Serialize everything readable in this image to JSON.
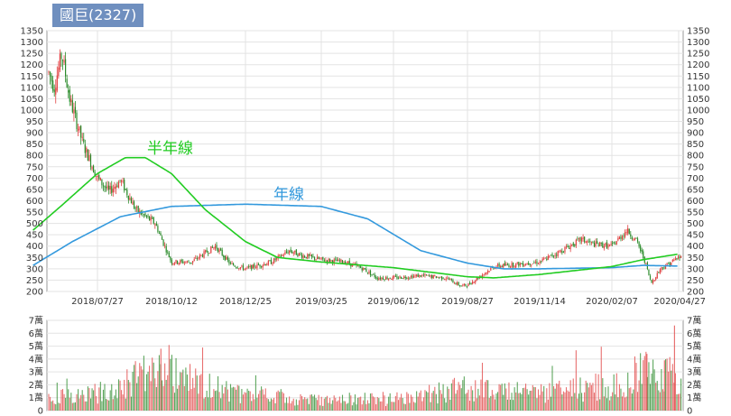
{
  "chart_data": {
    "title": "國巨(2327)",
    "type": "candlestick",
    "price_panel": {
      "y_ticks": [
        200,
        250,
        300,
        350,
        400,
        450,
        500,
        550,
        600,
        650,
        700,
        750,
        800,
        850,
        900,
        950,
        1000,
        1050,
        1100,
        1150,
        1200,
        1250,
        1300,
        1350
      ],
      "ylim": [
        200,
        1350
      ],
      "x_ticks": [
        "2018/07/27",
        "2018/10/12",
        "2018/12/25",
        "2019/03/25",
        "2019/06/12",
        "2019/08/27",
        "2019/11/14",
        "2020/02/07",
        "2020/04/27"
      ],
      "grid": true,
      "annotations": [
        {
          "text": "半年線",
          "color": "#22cc22"
        },
        {
          "text": "年線",
          "color": "#3399dd"
        }
      ],
      "price_keypoints": [
        [
          "2018/05/21",
          1000
        ],
        [
          "2018/06/05",
          1180
        ],
        [
          "2018/06/12",
          1100
        ],
        [
          "2018/06/20",
          1250
        ],
        [
          "2018/06/28",
          1050
        ],
        [
          "2018/07/12",
          850
        ],
        [
          "2018/07/27",
          700
        ],
        [
          "2018/08/08",
          640
        ],
        [
          "2018/08/20",
          690
        ],
        [
          "2018/09/05",
          560
        ],
        [
          "2018/09/25",
          500
        ],
        [
          "2018/10/12",
          330
        ],
        [
          "2018/11/01",
          330
        ],
        [
          "2018/11/25",
          400
        ],
        [
          "2018/12/10",
          320
        ],
        [
          "2018/12/25",
          300
        ],
        [
          "2019/01/25",
          330
        ],
        [
          "2019/02/15",
          380
        ],
        [
          "2019/03/01",
          360
        ],
        [
          "2019/03/25",
          340
        ],
        [
          "2019/04/20",
          330
        ],
        [
          "2019/05/10",
          300
        ],
        [
          "2019/05/25",
          260
        ],
        [
          "2019/06/12",
          260
        ],
        [
          "2019/07/10",
          270
        ],
        [
          "2019/08/05",
          260
        ],
        [
          "2019/08/20",
          225
        ],
        [
          "2019/08/27",
          228
        ],
        [
          "2019/09/25",
          310
        ],
        [
          "2019/10/20",
          320
        ],
        [
          "2019/11/14",
          330
        ],
        [
          "2019/12/10",
          380
        ],
        [
          "2020/01/02",
          430
        ],
        [
          "2020/01/15",
          410
        ],
        [
          "2020/02/07",
          400
        ],
        [
          "2020/02/25",
          470
        ],
        [
          "2020/03/08",
          420
        ],
        [
          "2020/03/18",
          330
        ],
        [
          "2020/03/25",
          235
        ],
        [
          "2020/04/05",
          300
        ],
        [
          "2020/04/27",
          350
        ]
      ],
      "ma_half_year": [
        [
          "2018/05/21",
          470
        ],
        [
          "2018/06/20",
          580
        ],
        [
          "2018/07/27",
          720
        ],
        [
          "2018/08/25",
          790
        ],
        [
          "2018/09/15",
          790
        ],
        [
          "2018/10/12",
          720
        ],
        [
          "2018/11/15",
          560
        ],
        [
          "2018/12/25",
          420
        ],
        [
          "2019/02/01",
          350
        ],
        [
          "2019/03/25",
          330
        ],
        [
          "2019/06/12",
          305
        ],
        [
          "2019/08/27",
          265
        ],
        [
          "2019/09/25",
          260
        ],
        [
          "2019/11/14",
          275
        ],
        [
          "2020/02/07",
          310
        ],
        [
          "2020/03/15",
          340
        ],
        [
          "2020/04/27",
          365
        ]
      ],
      "ma_year": [
        [
          "2018/05/21",
          315
        ],
        [
          "2018/07/01",
          420
        ],
        [
          "2018/08/20",
          530
        ],
        [
          "2018/10/12",
          575
        ],
        [
          "2018/12/25",
          585
        ],
        [
          "2019/03/25",
          575
        ],
        [
          "2019/05/15",
          520
        ],
        [
          "2019/07/10",
          380
        ],
        [
          "2019/08/27",
          325
        ],
        [
          "2019/10/05",
          300
        ],
        [
          "2019/11/14",
          300
        ],
        [
          "2020/02/07",
          305
        ],
        [
          "2020/03/15",
          315
        ],
        [
          "2020/04/27",
          312
        ]
      ]
    },
    "volume_panel": {
      "y_ticks": [
        "0",
        "1萬",
        "2萬",
        "3萬",
        "4萬",
        "5萬",
        "6萬",
        "7萬"
      ],
      "ylim": [
        0,
        7
      ],
      "unit": "萬",
      "volume_keypoints": [
        [
          "2018/05/21",
          1.0
        ],
        [
          "2018/07/27",
          1.5
        ],
        [
          "2018/09/15",
          3.0
        ],
        [
          "2018/10/12",
          3.0
        ],
        [
          "2018/12/25",
          1.3
        ],
        [
          "2019/03/25",
          1.0
        ],
        [
          "2019/06/12",
          1.0
        ],
        [
          "2019/08/27",
          2.0
        ],
        [
          "2019/11/14",
          1.5
        ],
        [
          "2020/02/07",
          2.2
        ],
        [
          "2020/03/20",
          3.5
        ],
        [
          "2020/04/27",
          2.5
        ]
      ]
    },
    "colors": {
      "up": "#e04040",
      "down": "#2a8a2a",
      "ma_half_year": "#22cc22",
      "ma_year": "#3399dd",
      "grid": "#e3e3e3",
      "badge": "#6f8fbf"
    }
  }
}
